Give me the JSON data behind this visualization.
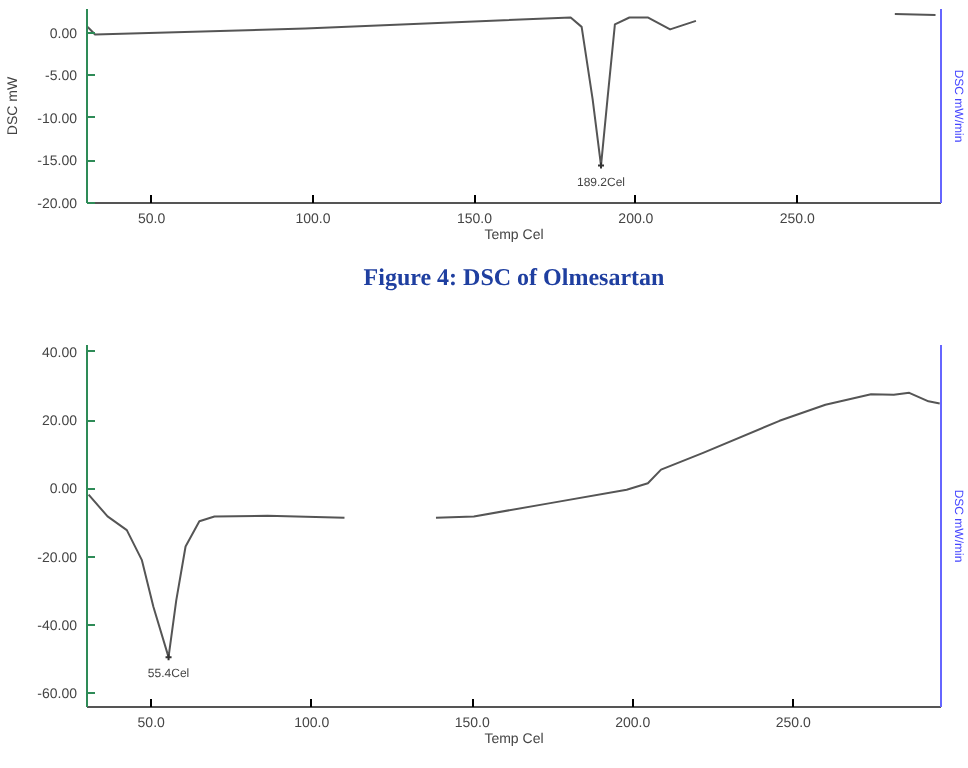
{
  "chart_data": [
    {
      "type": "line",
      "xlabel": "Temp Cel",
      "ylabel": "DSC mW",
      "y2label": "DSC mW/min",
      "annotations": [
        {
          "text": "189.2Cel",
          "x": 189.2,
          "y": -15.6
        },
        "Figure 4: DSC of Olmesartan"
      ],
      "x": [
        30.2,
        32.5,
        97.6,
        179.8,
        183.2,
        186.6,
        189.2,
        191.2,
        193.5,
        198,
        203.8,
        210.6,
        218.6,
        224.3,
        248,
        272.3,
        280.2,
        292.8
      ],
      "series": [
        {
          "color": "#555555",
          "values": [
            0.7,
            -0.2,
            0.5,
            1.8,
            0.7,
            -7.8,
            -15.6,
            -7.8,
            1.0,
            1.8,
            1.8,
            0.4,
            1.4,
            null,
            null,
            null,
            2.2,
            2.1
          ]
        }
      ],
      "xlim": [
        30,
        294.5
      ],
      "ylim": [
        -20,
        2.8
      ],
      "xticks": [
        {
          "value": 50,
          "label": "50.0"
        },
        {
          "value": 100,
          "label": "100.0"
        },
        {
          "value": 150,
          "label": "150.0"
        },
        {
          "value": 200,
          "label": "200.0"
        },
        {
          "value": 250,
          "label": "250.0"
        }
      ],
      "yticks": [
        {
          "value": 0,
          "label": "0.00"
        },
        {
          "value": -5,
          "label": "-5.00"
        },
        {
          "value": -10,
          "label": "-10.00"
        },
        {
          "value": -15,
          "label": "-15.00"
        },
        {
          "value": -20,
          "label": "-20.00"
        }
      ]
    },
    {
      "type": "line",
      "xlabel": "Temp Cel",
      "y2label": "DSC mW/min",
      "annotations": [
        {
          "text": "55.4Cel",
          "x": 55.4,
          "y": -49.4
        }
      ],
      "x": [
        30.5,
        36.4,
        42.4,
        47.1,
        50.7,
        55.4,
        57.8,
        60.7,
        65,
        69.7,
        86.2,
        110.2,
        124,
        138.7,
        150.5,
        174.3,
        198.1,
        204.7,
        208.8,
        221.9,
        245.7,
        260,
        274.2,
        281.3,
        286.1,
        292.1,
        295.6
      ],
      "series": [
        {
          "color": "#555555",
          "values": [
            -1.8,
            -8.2,
            -12.2,
            -21,
            -34.7,
            -49.4,
            -32.8,
            -17,
            -9.6,
            -8.2,
            -8.0,
            -8.6,
            null,
            -8.6,
            -8.2,
            -4.3,
            -0.4,
            1.5,
            5.5,
            10.4,
            19.8,
            24.5,
            27.6,
            27.4,
            28,
            25.5,
            24.9
          ]
        }
      ],
      "xlim": [
        30,
        296
      ],
      "ylim": [
        -64,
        42
      ],
      "xticks": [
        {
          "value": 50,
          "label": "50.0"
        },
        {
          "value": 100,
          "label": "100.0"
        },
        {
          "value": 150,
          "label": "150.0"
        },
        {
          "value": 200,
          "label": "200.0"
        },
        {
          "value": 250,
          "label": "250.0"
        }
      ],
      "yticks": [
        {
          "value": 40,
          "label": "40.00"
        },
        {
          "value": 20,
          "label": "20.00"
        },
        {
          "value": 0,
          "label": "0.00"
        },
        {
          "value": -20,
          "label": "-20.00"
        },
        {
          "value": -40,
          "label": "-40.00"
        },
        {
          "value": -60,
          "label": "-60.00"
        }
      ]
    }
  ]
}
